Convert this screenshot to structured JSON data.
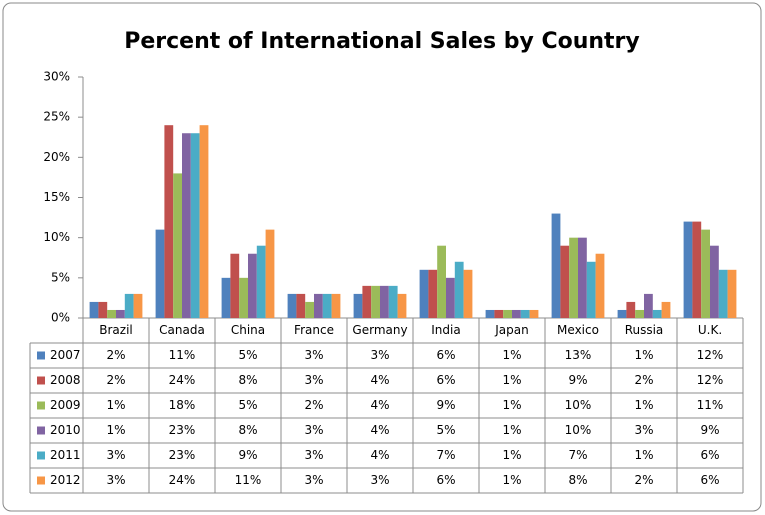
{
  "chart_data": {
    "type": "bar",
    "title": "Percent of International Sales by Country",
    "categories": [
      "Brazil",
      "Canada",
      "China",
      "France",
      "Germany",
      "India",
      "Japan",
      "Mexico",
      "Russia",
      "U.K."
    ],
    "ylim": [
      0,
      30
    ],
    "yticks": [
      {
        "value": 0,
        "label": "0%"
      },
      {
        "value": 5,
        "label": "5%"
      },
      {
        "value": 10,
        "label": "10%"
      },
      {
        "value": 15,
        "label": "15%"
      },
      {
        "value": 20,
        "label": "20%"
      },
      {
        "value": 25,
        "label": "25%"
      },
      {
        "value": 30,
        "label": "30%"
      }
    ],
    "grid": false,
    "series": [
      {
        "name": "2007",
        "color": "#4f81bd",
        "values": [
          2,
          11,
          5,
          3,
          3,
          6,
          1,
          13,
          1,
          12
        ],
        "value_labels": [
          "2%",
          "11%",
          "5%",
          "3%",
          "3%",
          "6%",
          "1%",
          "13%",
          "1%",
          "12%"
        ]
      },
      {
        "name": "2008",
        "color": "#c0504d",
        "values": [
          2,
          24,
          8,
          3,
          4,
          6,
          1,
          9,
          2,
          12
        ],
        "value_labels": [
          "2%",
          "24%",
          "8%",
          "3%",
          "4%",
          "6%",
          "1%",
          "9%",
          "2%",
          "12%"
        ]
      },
      {
        "name": "2009",
        "color": "#9bbb59",
        "values": [
          1,
          18,
          5,
          2,
          4,
          9,
          1,
          10,
          1,
          11
        ],
        "value_labels": [
          "1%",
          "18%",
          "5%",
          "2%",
          "4%",
          "9%",
          "1%",
          "10%",
          "1%",
          "11%"
        ]
      },
      {
        "name": "2010",
        "color": "#8064a2",
        "values": [
          1,
          23,
          8,
          3,
          4,
          5,
          1,
          10,
          3,
          9
        ],
        "value_labels": [
          "1%",
          "23%",
          "8%",
          "3%",
          "4%",
          "5%",
          "1%",
          "10%",
          "3%",
          "9%"
        ]
      },
      {
        "name": "2011",
        "color": "#4bacc6",
        "values": [
          3,
          23,
          9,
          3,
          4,
          7,
          1,
          7,
          1,
          6
        ],
        "value_labels": [
          "3%",
          "23%",
          "9%",
          "3%",
          "4%",
          "7%",
          "1%",
          "7%",
          "1%",
          "6%"
        ]
      },
      {
        "name": "2012",
        "color": "#f79646",
        "values": [
          3,
          24,
          11,
          3,
          3,
          6,
          1,
          8,
          2,
          6
        ],
        "value_labels": [
          "3%",
          "24%",
          "11%",
          "3%",
          "3%",
          "6%",
          "1%",
          "8%",
          "2%",
          "6%"
        ]
      }
    ]
  }
}
